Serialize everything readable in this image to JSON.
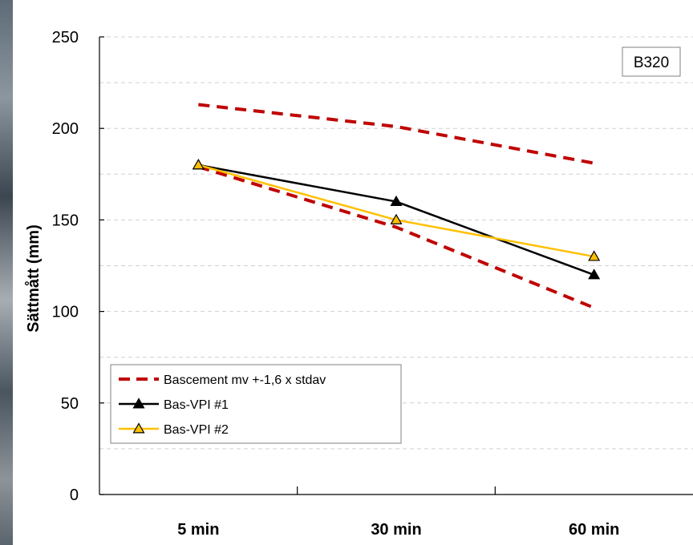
{
  "chart_data": {
    "type": "line",
    "categories": [
      "5 min",
      "30 min",
      "60 min"
    ],
    "ylabel": "Sättmått (mm)",
    "xlabel": "",
    "ylim": [
      0,
      250
    ],
    "yticks": [
      0,
      50,
      100,
      150,
      200,
      250
    ],
    "grid": "horizontal dashed, every 25",
    "annotation": "B320",
    "legend_position": "bottom-left",
    "series": [
      {
        "name": "Bascement mv +-1,6 x stdav",
        "style": "dashed",
        "color": "#c00000",
        "values": [
          213,
          201,
          181
        ]
      },
      {
        "name": "",
        "style": "dashed",
        "color": "#c00000",
        "values": [
          179,
          146,
          102
        ]
      },
      {
        "name": "Bas-VPI #1",
        "style": "solid",
        "marker": "triangle",
        "color": "#000000",
        "values": [
          180,
          160,
          120
        ]
      },
      {
        "name": "Bas-VPI #2",
        "style": "solid",
        "marker": "triangle",
        "color": "#ffc000",
        "values": [
          180,
          150,
          130
        ]
      }
    ]
  }
}
